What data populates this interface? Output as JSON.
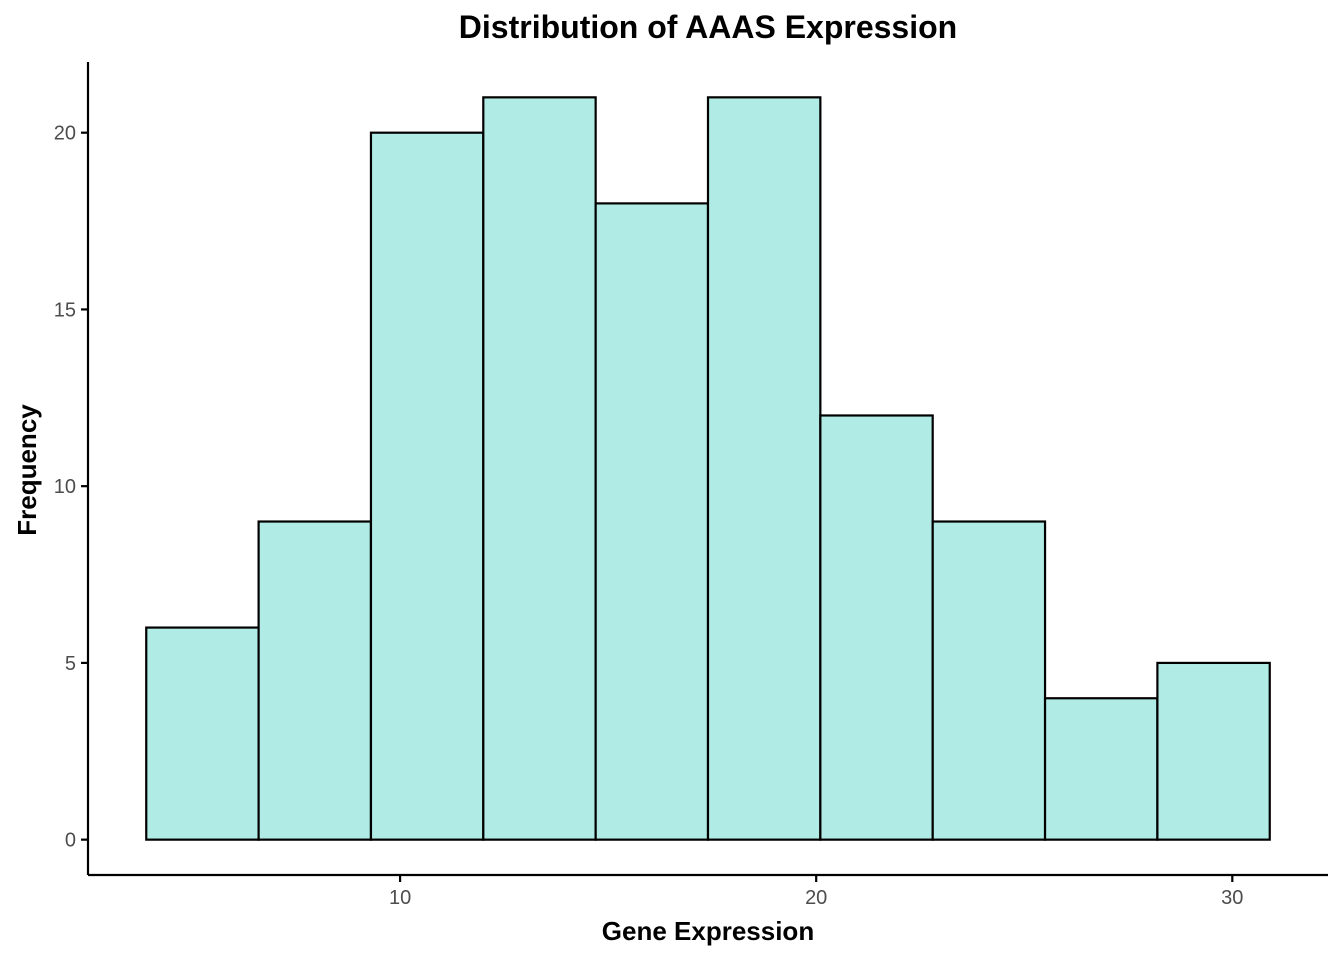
{
  "chart_data": {
    "type": "bar",
    "subtype": "histogram",
    "title": "Distribution of AAAS Expression",
    "xlabel": "Gene Expression",
    "ylabel": "Frequency",
    "bin_edges": [
      3.9,
      6.6,
      9.3,
      12.0,
      14.7,
      17.4,
      20.1,
      22.8,
      25.5,
      28.2,
      30.9
    ],
    "values": [
      6,
      9,
      20,
      21,
      18,
      21,
      12,
      9,
      4,
      5
    ],
    "xlim": [
      2.5,
      32.3
    ],
    "ylim": [
      -1,
      22
    ],
    "x_ticks": [
      10,
      20,
      30
    ],
    "y_ticks": [
      0,
      5,
      10,
      15,
      20
    ],
    "fill_color": "#b1ebe5",
    "edge_color": "#000000",
    "grid": false,
    "legend": "none"
  }
}
